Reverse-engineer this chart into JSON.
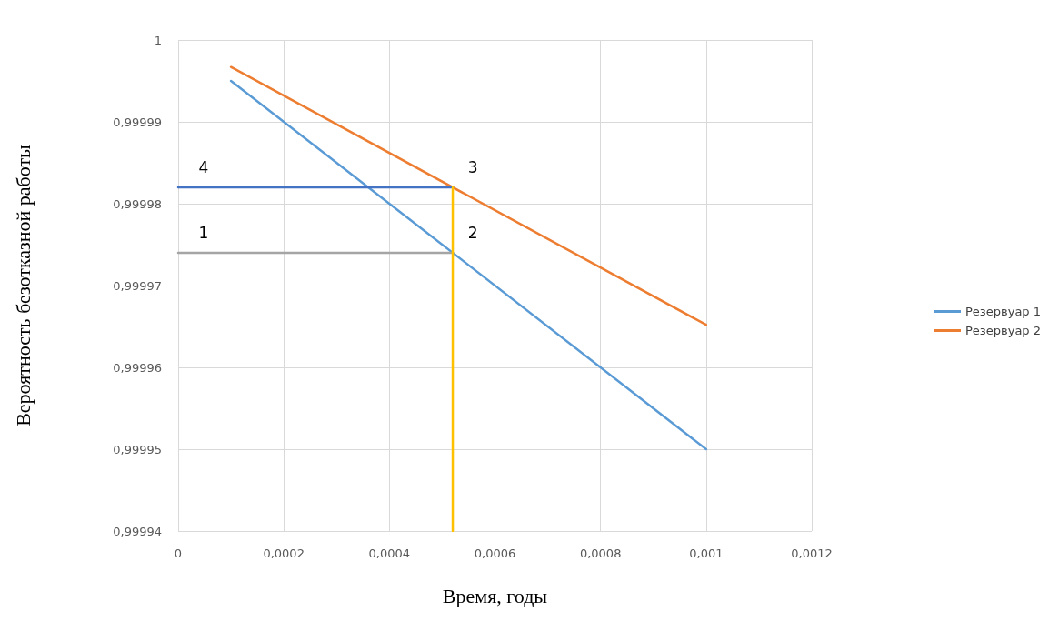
{
  "chart_data": {
    "type": "line",
    "xlabel": "Время, годы",
    "ylabel": "Вероятность безотказной работы",
    "xlim": [
      0,
      0.0012
    ],
    "xticks": [
      0,
      {
        "value": 0.0002,
        "label": "0,0002"
      },
      {
        "value": 0.0004,
        "label": "0,0004"
      },
      {
        "value": 0.0006,
        "label": "0,0006"
      },
      {
        "value": 0.0008,
        "label": "0,0008"
      },
      {
        "value": 0.001,
        "label": "0,001"
      },
      {
        "value": 0.0012,
        "label": "0,0012"
      }
    ],
    "ylim": [
      0.99994,
      1
    ],
    "yticks": [
      {
        "value": 0.99994,
        "label": "0,99994"
      },
      {
        "value": 0.99995,
        "label": "0,99995"
      },
      {
        "value": 0.99996,
        "label": "0,99996"
      },
      {
        "value": 0.99997,
        "label": "0,99997"
      },
      {
        "value": 0.99998,
        "label": "0,99998"
      },
      {
        "value": 0.99999,
        "label": "0,99999"
      },
      1
    ],
    "series": [
      {
        "name": "Резервуар 1",
        "color": "#5b9bd5",
        "x": [
          0.0001,
          0.001
        ],
        "values": [
          0.999995,
          0.99995
        ]
      },
      {
        "name": "Резервуар 2",
        "color": "#ed7d31",
        "x": [
          0.0001,
          0.001
        ],
        "values": [
          0.9999967,
          0.9999652
        ]
      },
      {
        "color": "#4472c4",
        "x": [
          0,
          0.00052
        ],
        "values": [
          0.999982,
          0.999982
        ]
      },
      {
        "color": "#a5a5a5",
        "x": [
          0,
          0.00052
        ],
        "values": [
          0.999974,
          0.999974
        ]
      },
      {
        "color": "#ffc000",
        "x": [
          0.00052,
          0.00052
        ],
        "values": [
          0.99994,
          0.999982
        ]
      }
    ],
    "annotations": [
      "1",
      "2",
      "3",
      "4"
    ],
    "grid": true,
    "legend": "right",
    "marker": "none",
    "line_style": "solid"
  }
}
